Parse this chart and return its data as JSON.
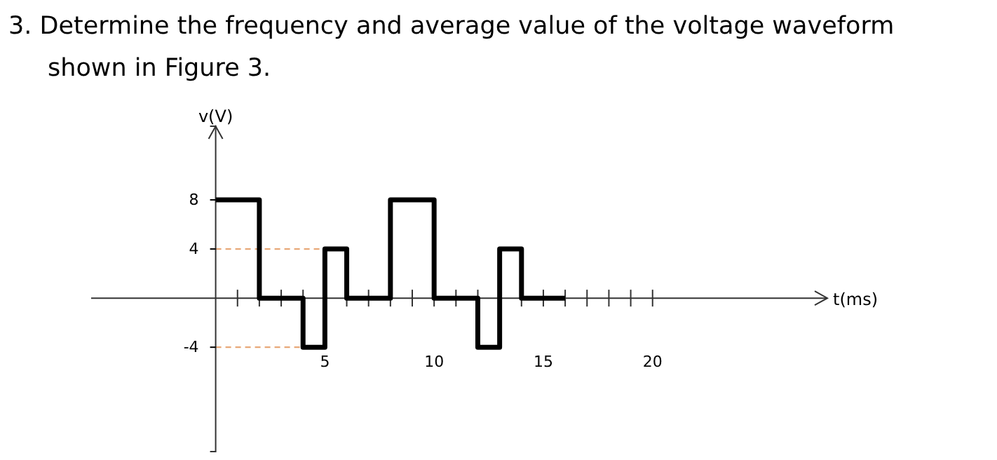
{
  "chart_data": {
    "type": "step",
    "title": "3. Determine the frequency and average value of the voltage waveform shown in Figure 3.",
    "xlabel": "t(ms)",
    "ylabel": "v(V)",
    "x": [
      0,
      2,
      4,
      5,
      6,
      8,
      10,
      12,
      13,
      14,
      16
    ],
    "series": [
      {
        "color": "#000000",
        "values": [
          8,
          0,
          -4,
          4,
          0,
          8,
          0,
          -4,
          4,
          0,
          0
        ]
      }
    ],
    "xlim": [
      -5.7,
      28
    ],
    "ylim": [
      -12.5,
      14
    ],
    "xticks": [
      {
        "value": 1,
        "label": null
      },
      {
        "value": 2,
        "label": null
      },
      {
        "value": 3,
        "label": null
      },
      {
        "value": 4,
        "label": null
      },
      5,
      {
        "value": 6,
        "label": null
      },
      {
        "value": 7,
        "label": null
      },
      {
        "value": 8,
        "label": null
      },
      {
        "value": 9,
        "label": null
      },
      10,
      {
        "value": 11,
        "label": null
      },
      {
        "value": 12,
        "label": null
      },
      {
        "value": 13,
        "label": null
      },
      {
        "value": 14,
        "label": null
      },
      15,
      {
        "value": 16,
        "label": null
      },
      {
        "value": 17,
        "label": null
      },
      {
        "value": 18,
        "label": null
      },
      {
        "value": 19,
        "label": null
      },
      20
    ],
    "yticks": [
      -4,
      4,
      8
    ],
    "ref_lines": [
      {
        "axis": "y",
        "value": 4,
        "color": "#e8a878",
        "line_style": "dashed"
      },
      {
        "axis": "y",
        "value": -4,
        "color": "#e8a878",
        "line_style": "dashed"
      }
    ],
    "grid": false
  }
}
